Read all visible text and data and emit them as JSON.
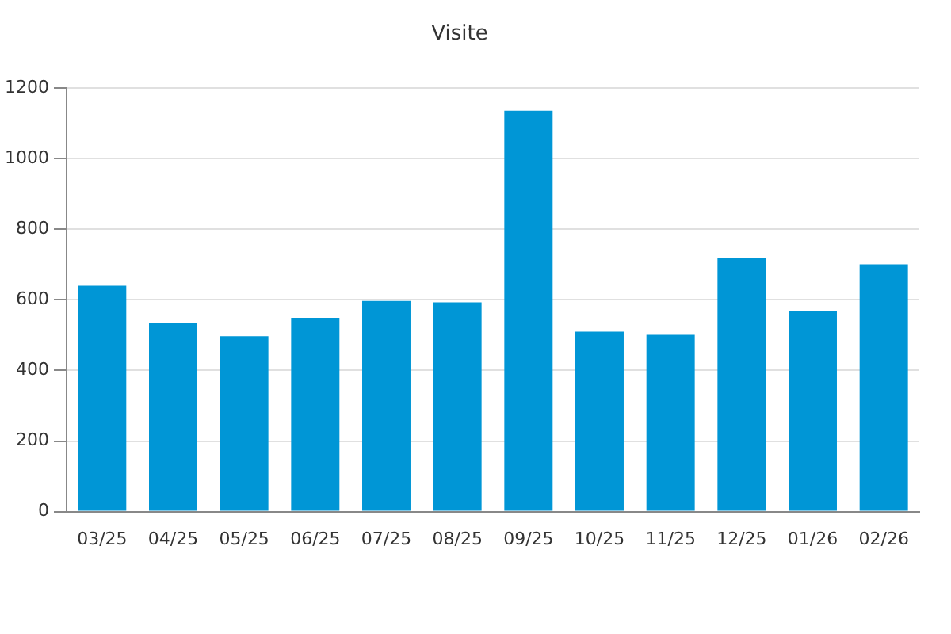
{
  "chart_data": {
    "type": "bar",
    "title": "Visite",
    "categories": [
      "03/25",
      "04/25",
      "05/25",
      "06/25",
      "07/25",
      "08/25",
      "09/25",
      "10/25",
      "11/25",
      "12/25",
      "01/26",
      "02/26"
    ],
    "values": [
      640,
      536,
      497,
      549,
      597,
      593,
      1136,
      510,
      501,
      719,
      567,
      701
    ],
    "color": "#0096d6",
    "ylim": [
      0,
      1200
    ],
    "yticks": [
      0,
      200,
      400,
      600,
      800,
      1000,
      1200
    ],
    "grid": "y",
    "legend": false
  }
}
